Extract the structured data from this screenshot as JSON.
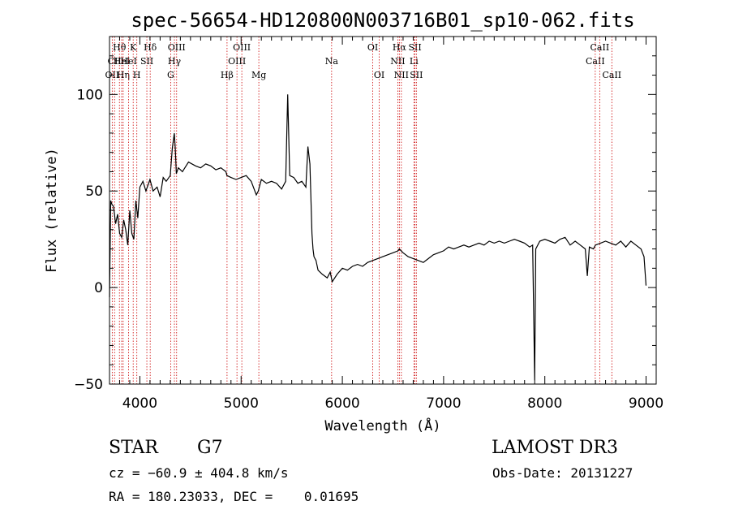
{
  "chart_data": {
    "type": "line",
    "title": "spec-56654-HD120800N003716B01_sp10-062.fits",
    "xlabel": "Wavelength (Å)",
    "ylabel": "Flux (relative)",
    "xlim": [
      3700,
      9100
    ],
    "ylim": [
      -50,
      130
    ],
    "xticks": [
      4000,
      5000,
      6000,
      7000,
      8000,
      9000
    ],
    "xtick_labels": [
      "4000",
      "5000",
      "6000",
      "7000",
      "8000",
      "9000"
    ],
    "yticks": [
      -50,
      0,
      50,
      100
    ],
    "ytick_labels": [
      "−50",
      "0",
      "50",
      "100"
    ],
    "grid": false,
    "line_color": "#000000",
    "marker_color": "#cc0000",
    "series": [
      {
        "x": [
          3700,
          3712,
          3725,
          3740,
          3760,
          3780,
          3800,
          3820,
          3840,
          3860,
          3880,
          3900,
          3920,
          3940,
          3960,
          3980,
          4000,
          4030,
          4060,
          4100,
          4130,
          4170,
          4200,
          4230,
          4260,
          4300,
          4320,
          4340,
          4350,
          4360,
          4380,
          4420,
          4480,
          4550,
          4600,
          4650,
          4700,
          4750,
          4800,
          4850,
          4860,
          4900,
          4950,
          5000,
          5050,
          5100,
          5150,
          5170,
          5200,
          5250,
          5300,
          5350,
          5400,
          5440,
          5460,
          5480,
          5520,
          5560,
          5600,
          5640,
          5660,
          5680,
          5700,
          5710,
          5720,
          5740,
          5760,
          5800,
          5850,
          5880,
          5900,
          5950,
          6000,
          6050,
          6100,
          6150,
          6200,
          6250,
          6300,
          6350,
          6400,
          6450,
          6500,
          6550,
          6563,
          6600,
          6650,
          6700,
          6750,
          6800,
          6850,
          6900,
          6950,
          7000,
          7050,
          7100,
          7150,
          7200,
          7250,
          7300,
          7350,
          7400,
          7450,
          7500,
          7550,
          7600,
          7650,
          7700,
          7750,
          7800,
          7850,
          7880,
          7890,
          7900,
          7910,
          7950,
          8000,
          8050,
          8100,
          8150,
          8200,
          8250,
          8300,
          8350,
          8400,
          8420,
          8440,
          8480,
          8500,
          8550,
          8600,
          8650,
          8700,
          8750,
          8800,
          8850,
          8900,
          8950,
          8980,
          9000
        ],
        "y": [
          -5,
          45,
          43,
          42,
          33,
          38,
          28,
          26,
          35,
          30,
          22,
          40,
          28,
          25,
          45,
          36,
          52,
          55,
          50,
          56,
          50,
          52,
          47,
          57,
          55,
          58,
          72,
          80,
          72,
          59,
          62,
          60,
          65,
          63,
          62,
          64,
          63,
          61,
          62,
          60,
          58,
          57,
          56,
          57,
          58,
          55,
          48,
          50,
          56,
          54,
          55,
          54,
          51,
          55,
          100,
          58,
          57,
          54,
          55,
          52,
          73,
          64,
          28,
          20,
          16,
          14,
          9,
          7,
          5,
          8,
          3,
          7,
          10,
          9,
          11,
          12,
          11,
          13,
          14,
          15,
          16,
          17,
          18,
          19,
          20,
          18,
          16,
          15,
          14,
          13,
          15,
          17,
          18,
          19,
          21,
          20,
          21,
          22,
          21,
          22,
          23,
          22,
          24,
          23,
          24,
          23,
          24,
          25,
          24,
          23,
          21,
          22,
          -15,
          -48,
          20,
          24,
          25,
          24,
          23,
          25,
          26,
          22,
          24,
          22,
          20,
          6,
          21,
          20,
          22,
          23,
          24,
          23,
          22,
          24,
          21,
          24,
          22,
          20,
          16,
          1
        ]
      }
    ],
    "line_markers": [
      {
        "x": 3727,
        "label": "OII",
        "row": 3
      },
      {
        "x": 3750,
        "label": "CII",
        "row": 2
      },
      {
        "x": 3798,
        "label": "Hθ",
        "row": 1
      },
      {
        "x": 3820,
        "label": "HeI",
        "row": 2
      },
      {
        "x": 3835,
        "label": "Hη",
        "row": 3
      },
      {
        "x": 3889,
        "label": "HeI",
        "row": 2
      },
      {
        "x": 3934,
        "label": "K",
        "row": 1
      },
      {
        "x": 3970,
        "label": "H",
        "row": 3
      },
      {
        "x": 4069,
        "label": "SII",
        "row": 2
      },
      {
        "x": 4102,
        "label": "Hδ",
        "row": 1
      },
      {
        "x": 4304,
        "label": "G",
        "row": 3
      },
      {
        "x": 4341,
        "label": "Hγ",
        "row": 2
      },
      {
        "x": 4363,
        "label": "OIII",
        "row": 1
      },
      {
        "x": 4861,
        "label": "Hβ",
        "row": 3
      },
      {
        "x": 4959,
        "label": "OIII",
        "row": 2
      },
      {
        "x": 5007,
        "label": "OIII",
        "row": 1
      },
      {
        "x": 5175,
        "label": "Mg",
        "row": 3
      },
      {
        "x": 5894,
        "label": "Na",
        "row": 2
      },
      {
        "x": 6300,
        "label": "OI",
        "row": 1
      },
      {
        "x": 6364,
        "label": "OI",
        "row": 3
      },
      {
        "x": 6548,
        "label": "NII",
        "row": 2
      },
      {
        "x": 6563,
        "label": "Hα",
        "row": 1
      },
      {
        "x": 6583,
        "label": "NII",
        "row": 3
      },
      {
        "x": 6707,
        "label": "Li",
        "row": 2
      },
      {
        "x": 6717,
        "label": "SII",
        "row": 1
      },
      {
        "x": 6731,
        "label": "SII",
        "row": 3
      },
      {
        "x": 8498,
        "label": "CaII",
        "row": 2
      },
      {
        "x": 8542,
        "label": "CaII",
        "row": 1
      },
      {
        "x": 8662,
        "label": "CaII",
        "row": 3
      }
    ]
  },
  "info": {
    "object_class": "STAR",
    "subclass": "G7",
    "survey": "LAMOST DR3",
    "redshift_text": "cz = −60.9 ± 404.8 km/s",
    "obs_date": "Obs-Date: 20131227",
    "coords": "RA = 180.23033, DEC =    0.01695"
  }
}
